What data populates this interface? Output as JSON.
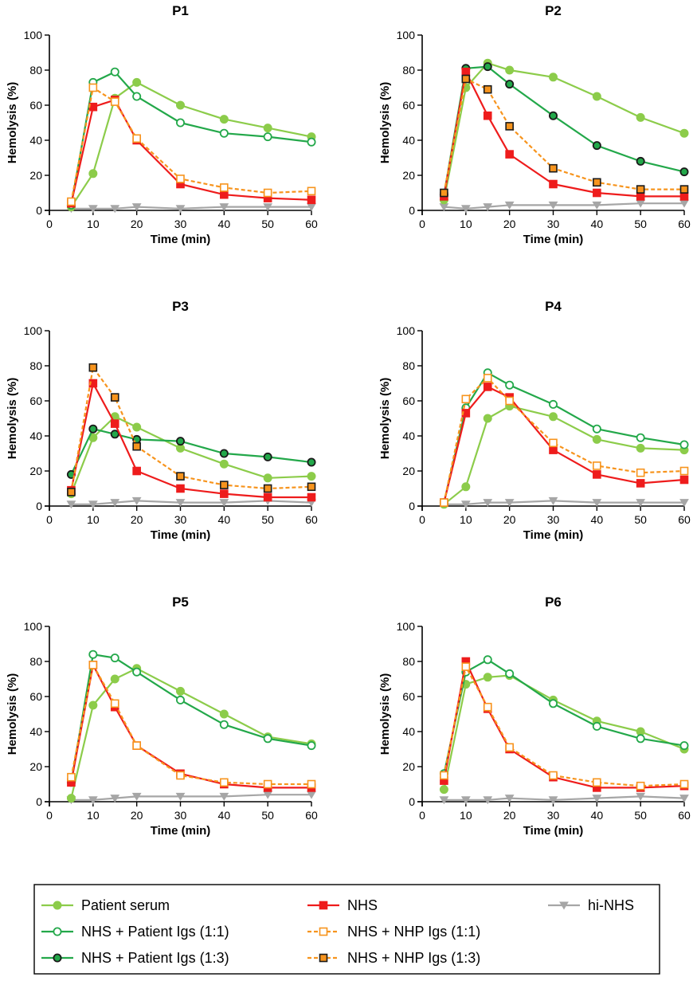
{
  "chart_data": [
    {
      "type": "line",
      "title": "P1",
      "xlabel": "Time (min)",
      "ylabel": "Hemolysis (%)",
      "xlim": [
        0,
        60
      ],
      "ylim": [
        0,
        100
      ],
      "xticks": [
        "0",
        "10",
        "20",
        "30",
        "40",
        "50",
        "60"
      ],
      "yticks": [
        "0",
        "20",
        "40",
        "60",
        "80",
        "100"
      ],
      "x": [
        5,
        10,
        15,
        20,
        30,
        40,
        50,
        60
      ],
      "series": [
        {
          "name": "Patient serum",
          "values": [
            2,
            21,
            64,
            73,
            60,
            52,
            47,
            42
          ]
        },
        {
          "name": "NHS + Patient Igs (1:1)",
          "values": [
            3,
            73,
            79,
            65,
            50,
            44,
            42,
            39
          ]
        },
        {
          "name": "NHS",
          "values": [
            4,
            59,
            63,
            40,
            15,
            9,
            7,
            6
          ]
        },
        {
          "name": "NHS + NHP Igs (1:1)",
          "values": [
            5,
            70,
            62,
            41,
            18,
            13,
            10,
            11
          ]
        },
        {
          "name": "hi-NHS",
          "values": [
            1,
            1,
            1,
            2,
            1,
            2,
            2,
            2
          ]
        }
      ]
    },
    {
      "type": "line",
      "title": "P2",
      "xlabel": "Time (min)",
      "ylabel": "Hemolysis (%)",
      "xlim": [
        0,
        60
      ],
      "ylim": [
        0,
        100
      ],
      "xticks": [
        "0",
        "10",
        "20",
        "30",
        "40",
        "50",
        "60"
      ],
      "yticks": [
        "0",
        "20",
        "40",
        "60",
        "80",
        "100"
      ],
      "x": [
        5,
        10,
        15,
        20,
        30,
        40,
        50,
        60
      ],
      "series": [
        {
          "name": "Patient serum",
          "values": [
            6,
            70,
            84,
            80,
            76,
            65,
            53,
            44
          ]
        },
        {
          "name": "NHS + Patient Igs (1:3)",
          "values": [
            9,
            81,
            82,
            72,
            54,
            37,
            28,
            22
          ]
        },
        {
          "name": "NHS",
          "values": [
            8,
            79,
            54,
            32,
            15,
            10,
            8,
            8
          ]
        },
        {
          "name": "NHS + NHP Igs (1:3)",
          "values": [
            10,
            75,
            69,
            48,
            24,
            16,
            12,
            12
          ]
        },
        {
          "name": "hi-NHS",
          "values": [
            2,
            1,
            2,
            3,
            3,
            3,
            4,
            4
          ]
        }
      ]
    },
    {
      "type": "line",
      "title": "P3",
      "xlabel": "Time (min)",
      "ylabel": "Hemolysis (%)",
      "xlim": [
        0,
        60
      ],
      "ylim": [
        0,
        100
      ],
      "xticks": [
        "0",
        "10",
        "20",
        "30",
        "40",
        "50",
        "60"
      ],
      "yticks": [
        "0",
        "20",
        "40",
        "60",
        "80",
        "100"
      ],
      "x": [
        5,
        10,
        15,
        20,
        30,
        40,
        50,
        60
      ],
      "series": [
        {
          "name": "Patient serum",
          "values": [
            7,
            39,
            51,
            45,
            33,
            24,
            16,
            17
          ]
        },
        {
          "name": "NHS + Patient Igs (1:3)",
          "values": [
            18,
            44,
            41,
            38,
            37,
            30,
            28,
            25
          ]
        },
        {
          "name": "NHS",
          "values": [
            9,
            70,
            47,
            20,
            10,
            7,
            5,
            5
          ]
        },
        {
          "name": "NHS + NHP Igs (1:3)",
          "values": [
            8,
            79,
            62,
            34,
            17,
            12,
            10,
            11
          ]
        },
        {
          "name": "hi-NHS",
          "values": [
            1,
            1,
            2,
            3,
            2,
            2,
            3,
            2
          ]
        }
      ]
    },
    {
      "type": "line",
      "title": "P4",
      "xlabel": "Time (min)",
      "ylabel": "Hemolysis (%)",
      "xlim": [
        0,
        60
      ],
      "ylim": [
        0,
        100
      ],
      "xticks": [
        "0",
        "10",
        "20",
        "30",
        "40",
        "50",
        "60"
      ],
      "yticks": [
        "0",
        "20",
        "40",
        "60",
        "80",
        "100"
      ],
      "x": [
        5,
        10,
        15,
        20,
        30,
        40,
        50,
        60
      ],
      "series": [
        {
          "name": "Patient serum",
          "values": [
            1,
            11,
            50,
            57,
            51,
            38,
            33,
            32
          ]
        },
        {
          "name": "NHS + Patient Igs (1:1)",
          "values": [
            2,
            56,
            76,
            69,
            58,
            44,
            39,
            35
          ]
        },
        {
          "name": "NHS",
          "values": [
            2,
            53,
            68,
            62,
            32,
            18,
            13,
            15
          ]
        },
        {
          "name": "NHS + NHP Igs (1:1)",
          "values": [
            2,
            61,
            73,
            60,
            36,
            23,
            19,
            20
          ]
        },
        {
          "name": "hi-NHS",
          "values": [
            1,
            1,
            2,
            2,
            3,
            2,
            2,
            2
          ]
        }
      ]
    },
    {
      "type": "line",
      "title": "P5",
      "xlabel": "Time (min)",
      "ylabel": "Hemolysis (%)",
      "xlim": [
        0,
        60
      ],
      "ylim": [
        0,
        100
      ],
      "xticks": [
        "0",
        "10",
        "20",
        "30",
        "40",
        "50",
        "60"
      ],
      "yticks": [
        "0",
        "20",
        "40",
        "60",
        "80",
        "100"
      ],
      "x": [
        5,
        10,
        15,
        20,
        30,
        40,
        50,
        60
      ],
      "series": [
        {
          "name": "Patient serum",
          "values": [
            2,
            55,
            70,
            76,
            63,
            50,
            37,
            33
          ]
        },
        {
          "name": "NHS + Patient Igs (1:1)",
          "values": [
            11,
            84,
            82,
            74,
            58,
            44,
            36,
            32
          ]
        },
        {
          "name": "NHS",
          "values": [
            11,
            78,
            54,
            32,
            16,
            10,
            8,
            8
          ]
        },
        {
          "name": "NHS + NHP Igs (1:1)",
          "values": [
            14,
            78,
            56,
            32,
            15,
            11,
            10,
            10
          ]
        },
        {
          "name": "hi-NHS",
          "values": [
            1,
            1,
            2,
            3,
            3,
            3,
            4,
            4
          ]
        }
      ]
    },
    {
      "type": "line",
      "title": "P6",
      "xlabel": "Time (min)",
      "ylabel": "Hemolysis (%)",
      "xlim": [
        0,
        60
      ],
      "ylim": [
        0,
        100
      ],
      "xticks": [
        "0",
        "10",
        "20",
        "30",
        "40",
        "50",
        "60"
      ],
      "yticks": [
        "0",
        "20",
        "40",
        "60",
        "80",
        "100"
      ],
      "x": [
        5,
        10,
        15,
        20,
        30,
        40,
        50,
        60
      ],
      "series": [
        {
          "name": "Patient serum",
          "values": [
            7,
            67,
            71,
            72,
            58,
            46,
            40,
            30
          ]
        },
        {
          "name": "NHS + Patient Igs (1:1)",
          "values": [
            16,
            74,
            81,
            73,
            56,
            43,
            36,
            32
          ]
        },
        {
          "name": "NHS",
          "values": [
            12,
            80,
            53,
            30,
            14,
            8,
            8,
            9
          ]
        },
        {
          "name": "NHS + NHP Igs (1:1)",
          "values": [
            15,
            77,
            54,
            31,
            15,
            11,
            9,
            10
          ]
        },
        {
          "name": "hi-NHS",
          "values": [
            1,
            1,
            1,
            2,
            1,
            2,
            3,
            2
          ]
        }
      ]
    }
  ],
  "legend": {
    "items": [
      {
        "label": "Patient serum",
        "series": "Patient serum"
      },
      {
        "label": "NHS + Patient Igs (1:1)",
        "series": "NHS + Patient Igs (1:1)"
      },
      {
        "label": "NHS + Patient Igs (1:3)",
        "series": "NHS + Patient Igs (1:3)"
      },
      {
        "label": "NHS",
        "series": "NHS"
      },
      {
        "label": "NHS + NHP Igs (1:1)",
        "series": "NHS + NHP Igs (1:1)"
      },
      {
        "label": "NHS + NHP Igs (1:3)",
        "series": "NHS + NHP Igs (1:3)"
      },
      {
        "label": "hi-NHS",
        "series": "hi-NHS"
      }
    ]
  },
  "series_styles": {
    "Patient serum": {
      "color": "#8ccc4a",
      "marker": "circle",
      "fill": "#8ccc4a",
      "stroke": "#8ccc4a",
      "dash": ""
    },
    "NHS + Patient Igs (1:1)": {
      "color": "#23a84a",
      "marker": "circle",
      "fill": "#ffffff",
      "stroke": "#23a84a",
      "dash": ""
    },
    "NHS + Patient Igs (1:3)": {
      "color": "#23a84a",
      "marker": "circle",
      "fill": "#23a84a",
      "stroke": "#1a1a1a",
      "dash": ""
    },
    "NHS": {
      "color": "#ee1c1c",
      "marker": "square",
      "fill": "#ee1c1c",
      "stroke": "#ee1c1c",
      "dash": ""
    },
    "NHS + NHP Igs (1:1)": {
      "color": "#f7941d",
      "marker": "square",
      "fill": "#ffffff",
      "stroke": "#f7941d",
      "dash": "5,3"
    },
    "NHS + NHP Igs (1:3)": {
      "color": "#f7941d",
      "marker": "square",
      "fill": "#f7941d",
      "stroke": "#1a1a1a",
      "dash": "5,3"
    },
    "hi-NHS": {
      "color": "#a6a6a6",
      "marker": "triangle-down",
      "fill": "#a6a6a6",
      "stroke": "#a6a6a6",
      "dash": ""
    }
  }
}
